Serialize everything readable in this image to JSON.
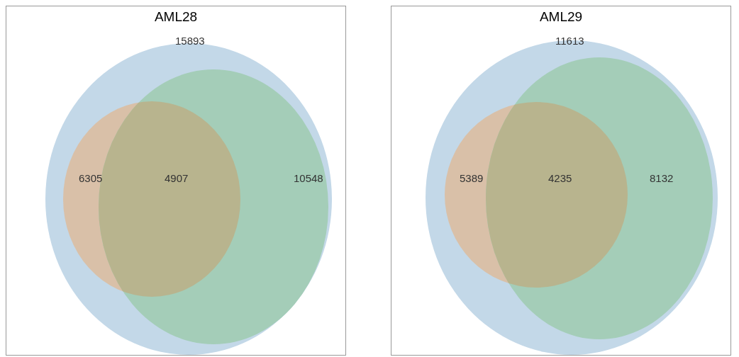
{
  "chart_data": [
    {
      "type": "other",
      "title": "AML28",
      "categories": [
        null,
        null,
        null,
        null
      ],
      "values": [
        15893,
        6305,
        4907,
        10548
      ],
      "colors": [
        "#c3d8e8",
        "#d9c0a8",
        "#a4cdb8",
        "#b8b48e"
      ],
      "data_labels": true
    },
    {
      "type": "other",
      "title": "AML29",
      "categories": [
        null,
        null,
        null,
        null
      ],
      "values": [
        11613,
        5389,
        4235,
        8132
      ],
      "colors": [
        "#c3d8e8",
        "#d9c0a8",
        "#a4cdb8",
        "#b8b48e"
      ],
      "data_labels": true
    }
  ]
}
